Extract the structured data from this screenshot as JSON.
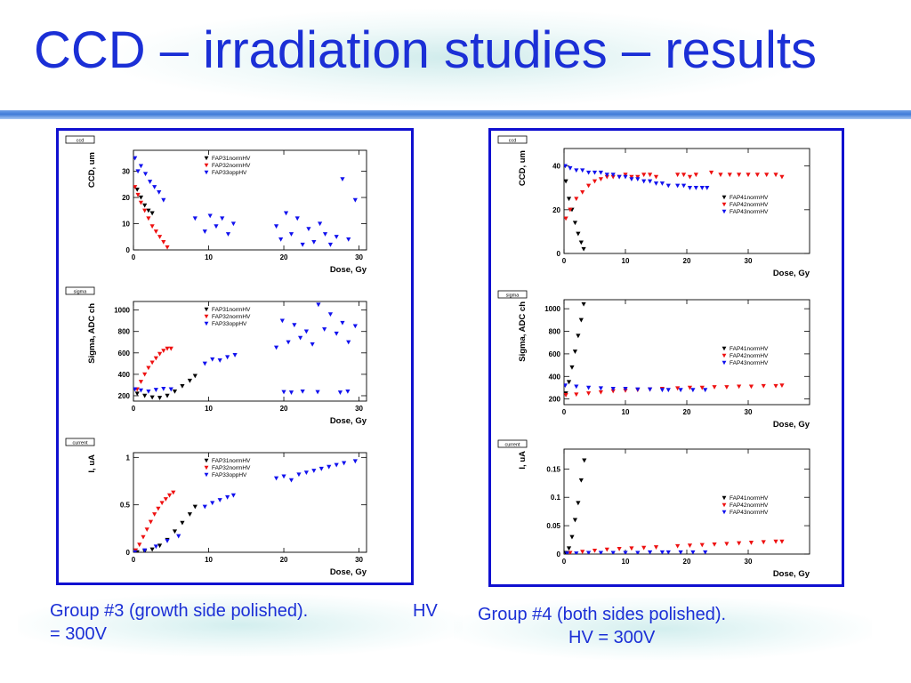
{
  "slide": {
    "title": "CCD – irradiation studies – results"
  },
  "captions": {
    "left_line1": "Group #3 (growth side polished).",
    "left_hv_a": "HV",
    "left_hv_b": "= 300V",
    "right_line1": "Group #4 (both sides polished).",
    "right_line2": "HV = 300V"
  },
  "colors": {
    "title": "#1b2fd6",
    "panel_border": "#1010d0",
    "series_black": "#000000",
    "series_red": "#ee1111",
    "series_blue": "#1111ee"
  },
  "chart_data": [
    {
      "type": "scatter",
      "tag": "ccd",
      "xlabel": "Dose, Gy",
      "ylabel": "CCD, um",
      "xlim": [
        0,
        31
      ],
      "ylim": [
        0,
        38
      ],
      "xticks": [
        0,
        10,
        20,
        30
      ],
      "yticks": [
        0,
        10,
        20,
        30
      ],
      "ytick_labels": [
        "0",
        "10",
        "20",
        "30"
      ],
      "legend_pos": "top-left",
      "series": [
        {
          "name": "FAP31normHV",
          "color": "black",
          "x": [
            0.5,
            1.0,
            1.5,
            2.0,
            2.5
          ],
          "y": [
            23,
            20,
            17,
            15,
            14
          ]
        },
        {
          "name": "FAP32normHV",
          "color": "red",
          "x": [
            0.2,
            0.6,
            1.0,
            1.5,
            2.0,
            2.5,
            3.0,
            3.5,
            4.0,
            4.5
          ],
          "y": [
            24,
            21,
            18,
            15,
            12,
            9,
            7,
            5,
            3,
            1
          ]
        },
        {
          "name": "FAP33oppHV",
          "color": "blue",
          "x": [
            0.2,
            0.6,
            1.0,
            1.6,
            2.2,
            2.8,
            3.4,
            4.0,
            8.2,
            9.5,
            10.2,
            11.0,
            11.8,
            12.6,
            13.3,
            19.0,
            19.6,
            20.3,
            21.0,
            21.8,
            22.5,
            23.3,
            24.0,
            24.8,
            25.5,
            26.2,
            27.0,
            27.8,
            28.6,
            29.5
          ],
          "y": [
            35,
            30,
            32,
            29,
            26,
            24,
            22,
            19,
            12,
            7,
            13,
            9,
            12,
            6,
            10,
            9,
            4,
            14,
            6,
            12,
            2,
            8,
            3,
            10,
            6,
            2,
            5,
            27,
            4,
            19
          ]
        }
      ]
    },
    {
      "type": "scatter",
      "tag": "sigma",
      "xlabel": "Dose, Gy",
      "ylabel": "Sigma, ADC ch",
      "xlim": [
        0,
        31
      ],
      "ylim": [
        150,
        1080
      ],
      "xticks": [
        0,
        10,
        20,
        30
      ],
      "yticks": [
        200,
        400,
        600,
        800,
        1000
      ],
      "ytick_labels": [
        "200",
        "400",
        "600",
        "800",
        "1000"
      ],
      "legend_pos": "top-left",
      "series": [
        {
          "name": "FAP31normHV",
          "color": "black",
          "x": [
            0.5,
            1.5,
            2.5,
            3.5,
            4.5,
            5.5,
            6.5,
            7.5,
            8.2
          ],
          "y": [
            220,
            200,
            185,
            180,
            200,
            240,
            290,
            340,
            385
          ]
        },
        {
          "name": "FAP32normHV",
          "color": "red",
          "x": [
            0.5,
            1.0,
            1.5,
            2.0,
            2.5,
            3.0,
            3.5,
            4.0,
            4.5,
            5.0
          ],
          "y": [
            260,
            330,
            400,
            460,
            510,
            550,
            590,
            620,
            640,
            640
          ]
        },
        {
          "name": "FAP33oppHV",
          "color": "blue",
          "x": [
            0.2,
            1.0,
            2.0,
            3.0,
            4.0,
            5.0,
            9.5,
            10.5,
            11.5,
            12.5,
            13.5,
            19.0,
            19.8,
            20.6,
            21.4,
            22.2,
            23.0,
            23.8,
            24.6,
            25.4,
            26.2,
            27.0,
            27.8,
            28.6,
            29.5,
            20.0,
            21.0,
            22.5,
            24.5,
            27.5,
            28.5
          ],
          "y": [
            260,
            250,
            240,
            255,
            265,
            260,
            500,
            540,
            530,
            560,
            580,
            650,
            900,
            700,
            860,
            740,
            800,
            680,
            1050,
            820,
            960,
            780,
            880,
            700,
            850,
            235,
            230,
            240,
            235,
            230,
            240
          ]
        }
      ]
    },
    {
      "type": "scatter",
      "tag": "current",
      "xlabel": "Dose, Gy",
      "ylabel": "I, uA",
      "xlim": [
        0,
        31
      ],
      "ylim": [
        0,
        1.05
      ],
      "xticks": [
        0,
        10,
        20,
        30
      ],
      "yticks": [
        0,
        0.5,
        1
      ],
      "ytick_labels": [
        "0",
        "0.5",
        "1"
      ],
      "legend_pos": "top-left",
      "series": [
        {
          "name": "FAP31normHV",
          "color": "black",
          "x": [
            0.5,
            1.5,
            2.5,
            3.5,
            4.5,
            5.5,
            6.5,
            7.5,
            8.2
          ],
          "y": [
            0.0,
            0.01,
            0.03,
            0.07,
            0.13,
            0.22,
            0.31,
            0.4,
            0.48
          ]
        },
        {
          "name": "FAP32normHV",
          "color": "red",
          "x": [
            0.3,
            0.8,
            1.3,
            1.8,
            2.3,
            2.8,
            3.3,
            3.8,
            4.3,
            4.8,
            5.3
          ],
          "y": [
            0.02,
            0.08,
            0.16,
            0.24,
            0.32,
            0.4,
            0.46,
            0.52,
            0.56,
            0.6,
            0.63
          ]
        },
        {
          "name": "FAP33oppHV",
          "color": "blue",
          "x": [
            0.2,
            1.5,
            3.0,
            4.5,
            6.0,
            9.5,
            10.5,
            11.5,
            12.5,
            13.3,
            19.0,
            20.0,
            21.0,
            22.0,
            23.0,
            24.0,
            25.0,
            26.0,
            27.0,
            28.0,
            29.5
          ],
          "y": [
            0.0,
            0.02,
            0.06,
            0.12,
            0.17,
            0.48,
            0.52,
            0.55,
            0.58,
            0.6,
            0.78,
            0.8,
            0.76,
            0.82,
            0.84,
            0.86,
            0.88,
            0.9,
            0.92,
            0.94,
            0.96
          ]
        }
      ]
    },
    {
      "type": "scatter",
      "tag": "ccd",
      "xlabel": "Dose, Gy",
      "ylabel": "CCD, um",
      "xlim": [
        0,
        40
      ],
      "ylim": [
        0,
        48
      ],
      "xticks": [
        0,
        10,
        20,
        30
      ],
      "yticks": [
        0,
        20,
        40
      ],
      "ytick_labels": [
        "0",
        "20",
        "40"
      ],
      "legend_pos": "right",
      "series": [
        {
          "name": "FAP41normHV",
          "color": "black",
          "x": [
            0.3,
            0.8,
            1.3,
            1.8,
            2.3,
            2.8,
            3.2
          ],
          "y": [
            33,
            25,
            20,
            14,
            9,
            5,
            2
          ]
        },
        {
          "name": "FAP42normHV",
          "color": "red",
          "x": [
            0.3,
            1.0,
            2.0,
            3.0,
            4.0,
            5.0,
            6.0,
            7.0,
            8.0,
            9.0,
            10.0,
            11.0,
            12.0,
            13.0,
            14.0,
            15.0,
            18.5,
            19.5,
            20.5,
            21.5,
            24.0,
            25.5,
            27.0,
            28.5,
            30.0,
            31.5,
            33.0,
            34.5,
            35.5
          ],
          "y": [
            16,
            20,
            25,
            28,
            31,
            33,
            34,
            35,
            35,
            35,
            36,
            35,
            35,
            36,
            36,
            35,
            36,
            36,
            35,
            36,
            37,
            36,
            36,
            36,
            36,
            36,
            36,
            36,
            35
          ]
        },
        {
          "name": "FAP43normHV",
          "color": "blue",
          "x": [
            0.2,
            1.0,
            2.0,
            3.0,
            4.0,
            5.0,
            6.0,
            7.0,
            8.0,
            9.0,
            10.0,
            11.0,
            12.0,
            13.0,
            14.0,
            15.0,
            16.0,
            17.0,
            18.5,
            19.5,
            20.5,
            21.5,
            22.5,
            23.3
          ],
          "y": [
            40,
            39,
            38,
            38,
            37,
            37,
            37,
            36,
            36,
            35,
            35,
            34,
            34,
            33,
            33,
            32,
            32,
            31,
            31,
            31,
            30,
            30,
            30,
            30
          ]
        }
      ]
    },
    {
      "type": "scatter",
      "tag": "sigma",
      "xlabel": "Dose, Gy",
      "ylabel": "Sigma, ADC ch",
      "xlim": [
        0,
        40
      ],
      "ylim": [
        150,
        1080
      ],
      "xticks": [
        0,
        10,
        20,
        30
      ],
      "yticks": [
        200,
        400,
        600,
        800,
        1000
      ],
      "ytick_labels": [
        "200",
        "400",
        "600",
        "800",
        "1000"
      ],
      "legend_pos": "right",
      "series": [
        {
          "name": "FAP41normHV",
          "color": "black",
          "x": [
            0.3,
            0.8,
            1.3,
            1.8,
            2.3,
            2.8,
            3.2
          ],
          "y": [
            250,
            350,
            480,
            620,
            760,
            900,
            1040
          ]
        },
        {
          "name": "FAP42normHV",
          "color": "red",
          "x": [
            0.3,
            2.0,
            4.0,
            6.0,
            8.0,
            10.0,
            12.0,
            14.0,
            16.0,
            18.5,
            20.5,
            22.5,
            24.5,
            26.5,
            28.5,
            30.5,
            32.5,
            34.5,
            35.5
          ],
          "y": [
            235,
            240,
            250,
            260,
            270,
            275,
            280,
            285,
            290,
            295,
            300,
            300,
            305,
            305,
            310,
            310,
            315,
            315,
            320
          ]
        },
        {
          "name": "FAP43normHV",
          "color": "blue",
          "x": [
            0.2,
            2.0,
            4.0,
            6.0,
            8.0,
            10.0,
            12.0,
            14.0,
            16.0,
            17.0,
            19.0,
            21.0,
            23.0
          ],
          "y": [
            320,
            310,
            300,
            295,
            290,
            290,
            285,
            285,
            280,
            280,
            280,
            280,
            280
          ]
        }
      ]
    },
    {
      "type": "scatter",
      "tag": "current",
      "xlabel": "Dose, Gy",
      "ylabel": "I, uA",
      "xlim": [
        0,
        40
      ],
      "ylim": [
        0,
        0.185
      ],
      "xticks": [
        0,
        10,
        20,
        30
      ],
      "yticks": [
        0,
        0.05,
        0.1,
        0.15
      ],
      "ytick_labels": [
        "0",
        "0.05",
        "0.1",
        "0.15"
      ],
      "legend_pos": "right",
      "series": [
        {
          "name": "FAP41normHV",
          "color": "black",
          "x": [
            0.3,
            0.8,
            1.3,
            1.8,
            2.3,
            2.8,
            3.3
          ],
          "y": [
            0.002,
            0.01,
            0.03,
            0.06,
            0.09,
            0.13,
            0.165
          ]
        },
        {
          "name": "FAP42normHV",
          "color": "red",
          "x": [
            1.0,
            3.0,
            5.0,
            7.0,
            9.0,
            11.0,
            13.0,
            15.0,
            18.5,
            20.5,
            22.5,
            24.5,
            26.5,
            28.5,
            30.5,
            32.5,
            34.5,
            35.5
          ],
          "y": [
            0.002,
            0.004,
            0.006,
            0.008,
            0.009,
            0.01,
            0.011,
            0.012,
            0.014,
            0.015,
            0.016,
            0.017,
            0.018,
            0.019,
            0.02,
            0.021,
            0.022,
            0.022
          ]
        },
        {
          "name": "FAP43normHV",
          "color": "blue",
          "x": [
            0.5,
            2.0,
            4.0,
            6.0,
            8.0,
            10.0,
            12.0,
            14.0,
            16.0,
            17.0,
            19.0,
            21.0,
            23.0
          ],
          "y": [
            0.001,
            0.001,
            0.002,
            0.002,
            0.002,
            0.002,
            0.002,
            0.003,
            0.003,
            0.003,
            0.003,
            0.003,
            0.003
          ]
        }
      ]
    }
  ]
}
